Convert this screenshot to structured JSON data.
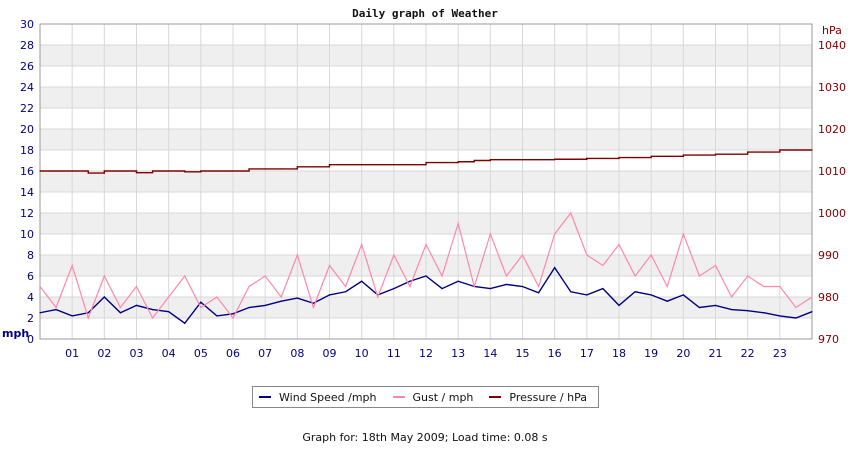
{
  "chart_data": {
    "type": "line",
    "title": "Daily graph of Weather",
    "x_ticks": [
      "01",
      "02",
      "03",
      "04",
      "05",
      "06",
      "07",
      "08",
      "09",
      "10",
      "11",
      "12",
      "13",
      "14",
      "15",
      "16",
      "17",
      "18",
      "19",
      "20",
      "21",
      "22",
      "23"
    ],
    "xlim_hours": [
      0,
      24
    ],
    "left_axis": {
      "unit": "mph",
      "ylim": [
        0,
        30
      ],
      "ticks": [
        0,
        2,
        4,
        6,
        8,
        10,
        12,
        14,
        16,
        18,
        20,
        22,
        24,
        26,
        28,
        30
      ]
    },
    "right_axis": {
      "unit": "hPa",
      "ylim": [
        970,
        1045
      ],
      "ticks": [
        970,
        980,
        990,
        1000,
        1010,
        1020,
        1030,
        1040
      ]
    },
    "grid": true,
    "series": [
      {
        "name": "Wind Speed /mph",
        "axis": "left",
        "color": "#000080",
        "x": [
          0,
          0.5,
          1,
          1.5,
          2,
          2.5,
          3,
          3.5,
          4,
          4.5,
          5,
          5.5,
          6,
          6.5,
          7,
          7.5,
          8,
          8.5,
          9,
          9.5,
          10,
          10.5,
          11,
          11.5,
          12,
          12.5,
          13,
          13.5,
          14,
          14.5,
          15,
          15.5,
          16,
          16.5,
          17,
          17.5,
          18,
          18.5,
          19,
          19.5,
          20,
          20.5,
          21,
          21.5,
          22,
          22.5,
          23,
          23.5,
          24
        ],
        "values": [
          2.5,
          2.8,
          2.2,
          2.5,
          4.0,
          2.5,
          3.2,
          2.8,
          2.6,
          1.5,
          3.5,
          2.2,
          2.4,
          3.0,
          3.2,
          3.6,
          3.9,
          3.4,
          4.2,
          4.5,
          5.5,
          4.2,
          4.8,
          5.5,
          6.0,
          4.8,
          5.5,
          5.0,
          4.8,
          5.2,
          5.0,
          4.4,
          6.8,
          4.5,
          4.2,
          4.8,
          3.2,
          4.5,
          4.2,
          3.6,
          4.2,
          3.0,
          3.2,
          2.8,
          2.7,
          2.5,
          2.2,
          2.0,
          2.6
        ]
      },
      {
        "name": "Gust / mph",
        "axis": "left",
        "color": "#ff88aa",
        "x": [
          0,
          0.5,
          1,
          1.5,
          2,
          2.5,
          3,
          3.5,
          4,
          4.5,
          5,
          5.5,
          6,
          6.5,
          7,
          7.5,
          8,
          8.5,
          9,
          9.5,
          10,
          10.5,
          11,
          11.5,
          12,
          12.5,
          13,
          13.5,
          14,
          14.5,
          15,
          15.5,
          16,
          16.5,
          17,
          17.5,
          18,
          18.5,
          19,
          19.5,
          20,
          20.5,
          21,
          21.5,
          22,
          22.5,
          23,
          23.5,
          24
        ],
        "values": [
          5,
          3,
          7,
          2,
          6,
          3,
          5,
          2,
          4,
          6,
          3,
          4,
          2,
          5,
          6,
          4,
          8,
          3,
          7,
          5,
          9,
          4,
          8,
          5,
          9,
          6,
          11,
          5,
          10,
          6,
          8,
          5,
          10,
          12,
          8,
          7,
          9,
          6,
          8,
          5,
          10,
          6,
          7,
          4,
          6,
          5,
          5,
          3,
          4
        ]
      },
      {
        "name": "Pressure / hPa",
        "axis": "right",
        "color": "#800000",
        "x": [
          0,
          1,
          1.5,
          2,
          2.5,
          3,
          3.5,
          4,
          4.5,
          5,
          5.5,
          6,
          6.5,
          7,
          7.5,
          8,
          8.5,
          9,
          9.5,
          10,
          10.5,
          11,
          11.5,
          12,
          12.5,
          13,
          13.5,
          14,
          14.5,
          15,
          15.5,
          16,
          16.5,
          17,
          17.5,
          18,
          18.5,
          19,
          19.5,
          20,
          20.5,
          21,
          21.5,
          22,
          22.5,
          23,
          23.5,
          24
        ],
        "values": [
          1010,
          1010,
          1009.5,
          1010,
          1010,
          1009.6,
          1010,
          1010,
          1009.8,
          1010,
          1010,
          1010,
          1010.5,
          1010.5,
          1010.5,
          1011,
          1011,
          1011.5,
          1011.5,
          1011.5,
          1011.5,
          1011.5,
          1011.5,
          1012,
          1012,
          1012.2,
          1012.5,
          1012.7,
          1012.7,
          1012.7,
          1012.7,
          1012.8,
          1012.8,
          1013,
          1013,
          1013.2,
          1013.2,
          1013.5,
          1013.5,
          1013.8,
          1013.8,
          1014,
          1014,
          1014.5,
          1014.5,
          1015,
          1015,
          1015
        ]
      }
    ]
  },
  "legend": {
    "wind_label": "Wind Speed /mph",
    "gust_label": "Gust / mph",
    "pressure_label": "Pressure / hPa"
  },
  "footer": "Graph for: 18th May 2009; Load time: 0.08 s"
}
